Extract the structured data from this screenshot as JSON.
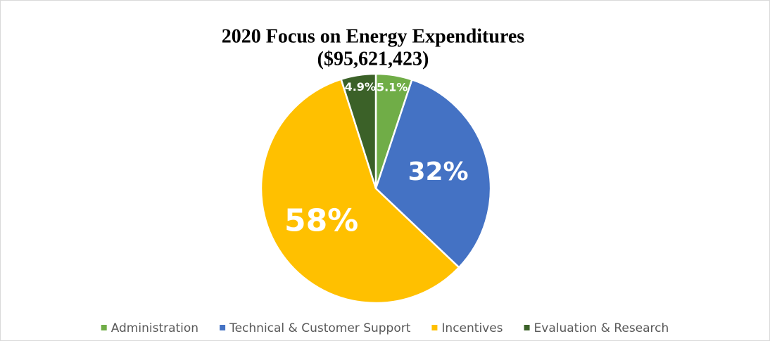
{
  "chart_data": {
    "type": "pie",
    "title": "2020 Focus on Energy Expenditures",
    "subtitle": "($95,621,423)",
    "categories": [
      "Administration",
      "Technical & Customer Support",
      "Incentives",
      "Evaluation & Research"
    ],
    "values": [
      5.1,
      32,
      58,
      4.9
    ],
    "value_labels": [
      "5.1%",
      "32%",
      "58%",
      "4.9%"
    ],
    "colors": [
      "#70ad47",
      "#4472c4",
      "#ffc000",
      "#3b6128"
    ],
    "legend": "bottom"
  }
}
